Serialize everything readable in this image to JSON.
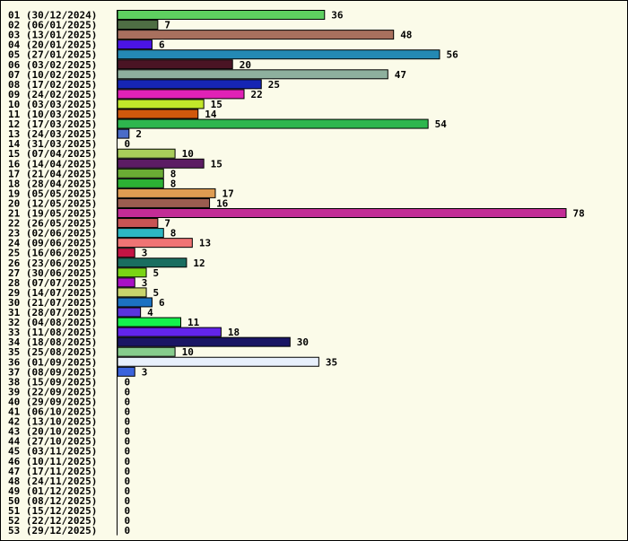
{
  "chart_data": {
    "type": "bar",
    "orientation": "horizontal",
    "categories": [
      "01 (30/12/2024)",
      "02 (06/01/2025)",
      "03 (13/01/2025)",
      "04 (20/01/2025)",
      "05 (27/01/2025)",
      "06 (03/02/2025)",
      "07 (10/02/2025)",
      "08 (17/02/2025)",
      "09 (24/02/2025)",
      "10 (03/03/2025)",
      "11 (10/03/2025)",
      "12 (17/03/2025)",
      "13 (24/03/2025)",
      "14 (31/03/2025)",
      "15 (07/04/2025)",
      "16 (14/04/2025)",
      "17 (21/04/2025)",
      "18 (28/04/2025)",
      "19 (05/05/2025)",
      "20 (12/05/2025)",
      "21 (19/05/2025)",
      "22 (26/05/2025)",
      "23 (02/06/2025)",
      "24 (09/06/2025)",
      "25 (16/06/2025)",
      "26 (23/06/2025)",
      "27 (30/06/2025)",
      "28 (07/07/2025)",
      "29 (14/07/2025)",
      "30 (21/07/2025)",
      "31 (28/07/2025)",
      "32 (04/08/2025)",
      "33 (11/08/2025)",
      "34 (18/08/2025)",
      "35 (25/08/2025)",
      "36 (01/09/2025)",
      "37 (08/09/2025)",
      "38 (15/09/2025)",
      "39 (22/09/2025)",
      "40 (29/09/2025)",
      "41 (06/10/2025)",
      "42 (13/10/2025)",
      "43 (20/10/2025)",
      "44 (27/10/2025)",
      "45 (03/11/2025)",
      "46 (10/11/2025)",
      "47 (17/11/2025)",
      "48 (24/11/2025)",
      "49 (01/12/2025)",
      "50 (08/12/2025)",
      "51 (15/12/2025)",
      "52 (22/12/2025)",
      "53 (29/12/2025)"
    ],
    "values": [
      36,
      7,
      48,
      6,
      56,
      20,
      47,
      25,
      22,
      15,
      14,
      54,
      2,
      0,
      10,
      15,
      8,
      8,
      17,
      16,
      78,
      7,
      8,
      13,
      3,
      12,
      5,
      3,
      5,
      6,
      4,
      11,
      18,
      30,
      10,
      35,
      3,
      0,
      0,
      0,
      0,
      0,
      0,
      0,
      0,
      0,
      0,
      0,
      0,
      0,
      0,
      0,
      0
    ],
    "colors": [
      "#5ecf60",
      "#4e6e44",
      "#a8705e",
      "#4b14e6",
      "#2489b4",
      "#4a1424",
      "#8eb09e",
      "#1625b4",
      "#e022b6",
      "#c2e62a",
      "#d0580c",
      "#2eb64e",
      "#4a6cc8",
      "#ffffff",
      "#a8cc5a",
      "#5c1c64",
      "#6aac34",
      "#2cb034",
      "#de9c52",
      "#9a5c50",
      "#c22c96",
      "#c85454",
      "#2cb6c2",
      "#f07474",
      "#c41444",
      "#1a6e60",
      "#7ad414",
      "#a810c4",
      "#c8d46c",
      "#1c72c2",
      "#5a34dc",
      "#14f04c",
      "#6224ea",
      "#1a1664",
      "#86cc8c",
      "#e8f0fc",
      "#3c64dc"
    ],
    "xlim": [
      0,
      78
    ],
    "grid": false,
    "legend": "none"
  }
}
